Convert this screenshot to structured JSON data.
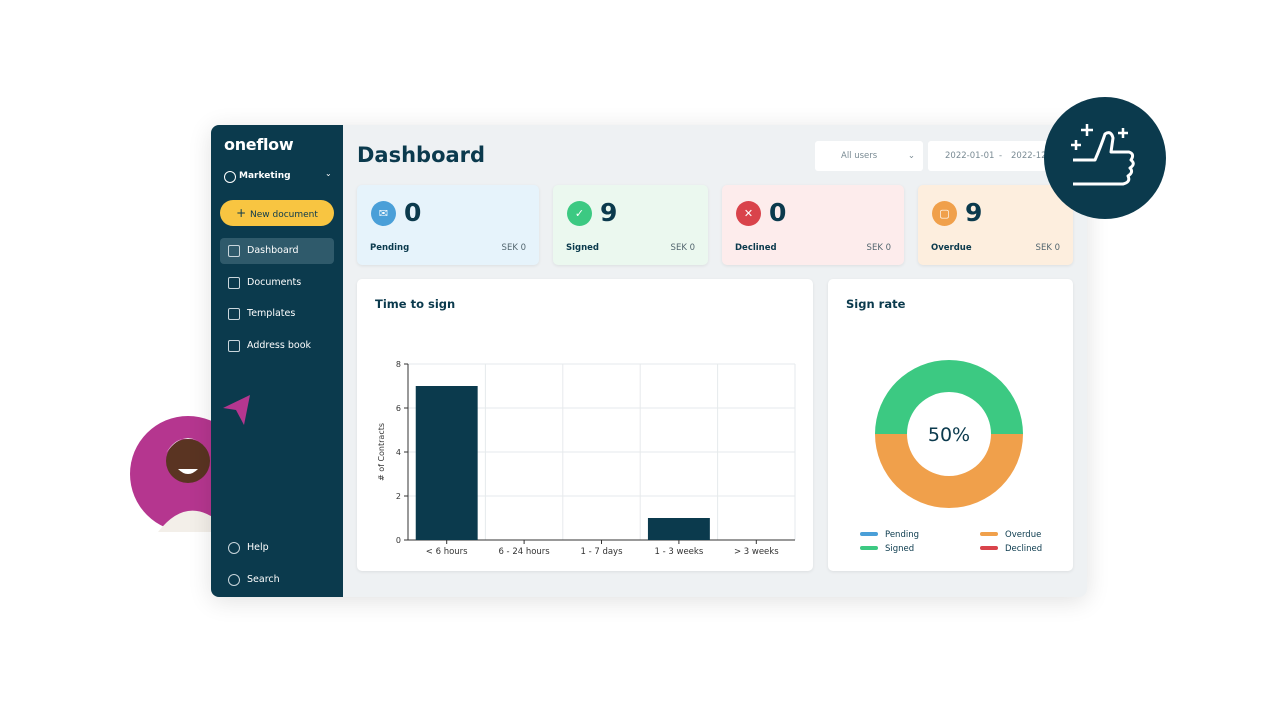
{
  "sidebar": {
    "logo": "oneflow",
    "workspace": "Marketing",
    "new_document": "New document",
    "nav": [
      "Dashboard",
      "Documents",
      "Templates",
      "Address book"
    ],
    "bottom": [
      "Help",
      "Search"
    ]
  },
  "header": {
    "title": "Dashboard",
    "user_filter": "All users",
    "date_from": "2022-01-01",
    "date_separator": "-",
    "date_to": "2022-12"
  },
  "cards": [
    {
      "label": "Pending",
      "count": 0,
      "amount": "SEK 0"
    },
    {
      "label": "Signed",
      "count": 9,
      "amount": "SEK 0"
    },
    {
      "label": "Declined",
      "count": 0,
      "amount": "SEK 0"
    },
    {
      "label": "Overdue",
      "count": 9,
      "amount": "SEK 0"
    }
  ],
  "chart_data": [
    {
      "type": "bar",
      "title": "Time to sign",
      "y_label": "# of Contracts",
      "categories": [
        "< 6 hours",
        "6 - 24 hours",
        "1 - 7 days",
        "1 - 3 weeks",
        "> 3 weeks"
      ],
      "values": [
        7,
        0,
        0,
        1,
        0
      ],
      "color": "#0b3a4d",
      "ylim": [
        0,
        8
      ],
      "yticks": [
        0,
        2,
        4,
        6,
        8
      ],
      "grid": true
    },
    {
      "type": "pie",
      "title": "Sign rate",
      "center_label": "50%",
      "series": [
        {
          "name": "Pending",
          "color": "#4a9fd8",
          "value": 0
        },
        {
          "name": "Overdue",
          "color": "#f0a04b",
          "value": 50
        },
        {
          "name": "Signed",
          "color": "#3cc982",
          "value": 50
        },
        {
          "name": "Declined",
          "color": "#d9434b",
          "value": 0
        }
      ]
    }
  ]
}
